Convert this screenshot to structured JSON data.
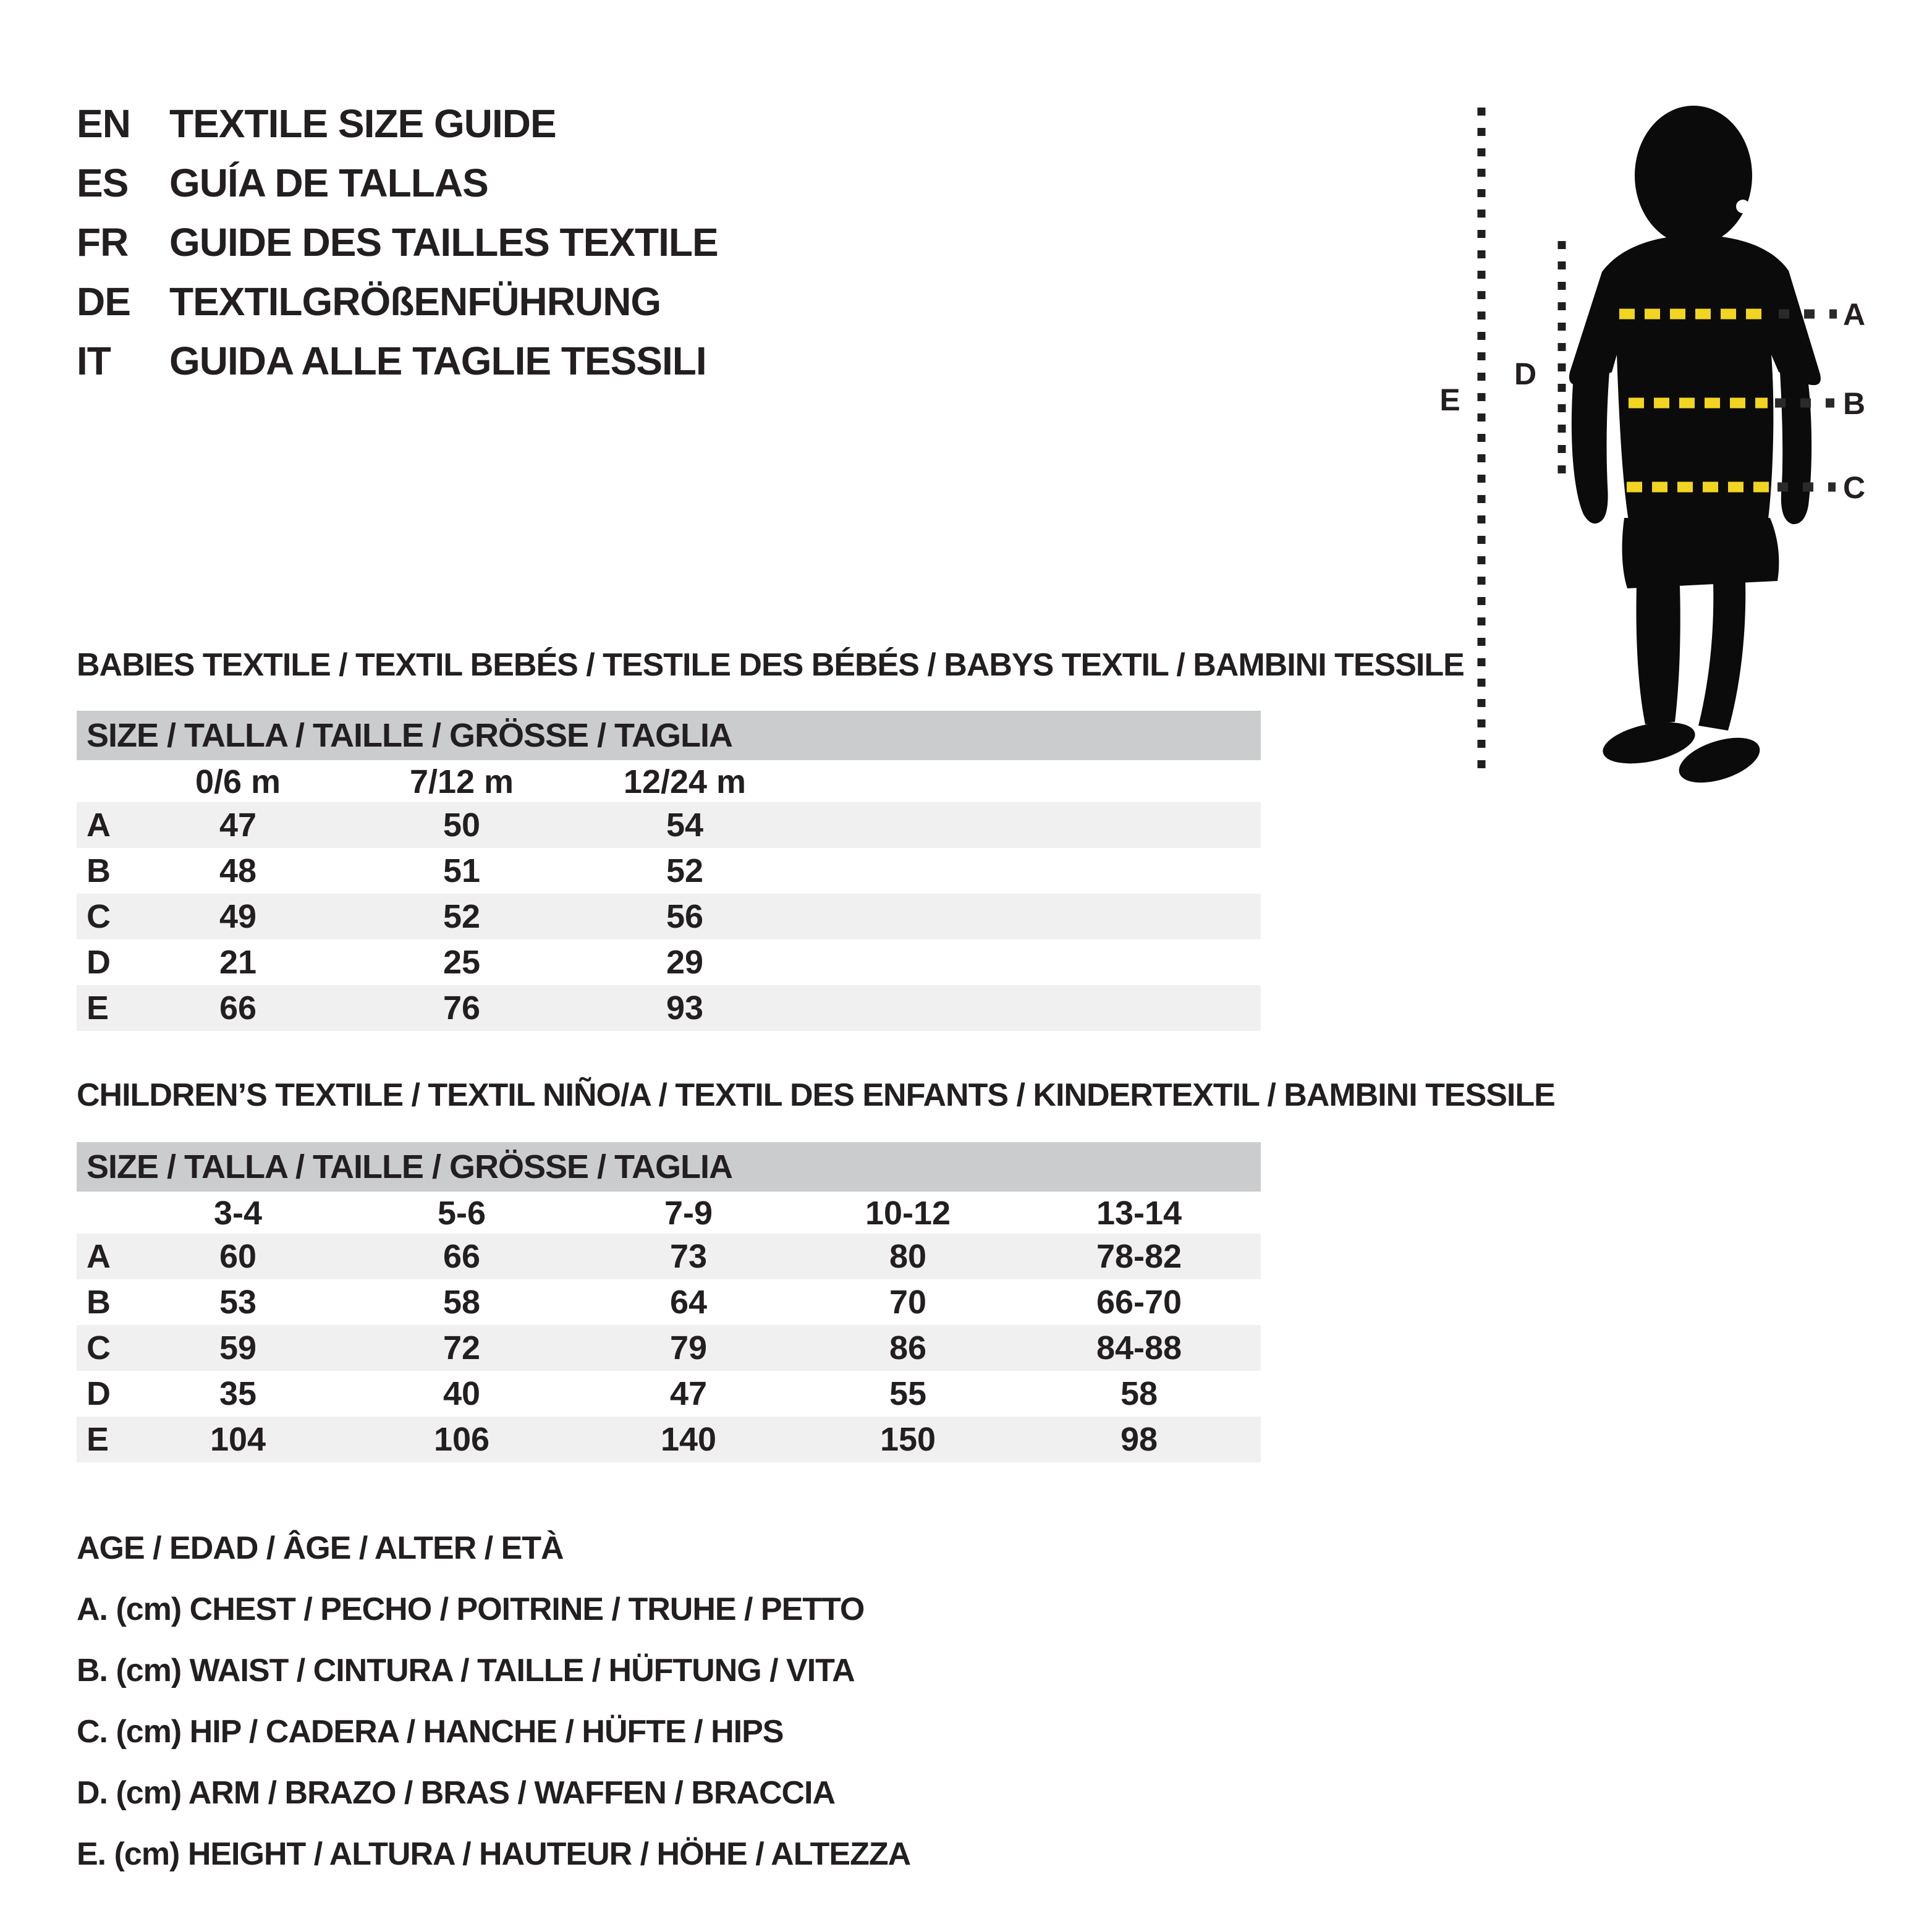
{
  "page": {
    "background": "#ffffff",
    "text_color": "#231f20",
    "accent_yellow": "#f2d520",
    "size_bar_grey": "#cbccce",
    "row_stripe": "#f0f0f1",
    "silhouette_black": "#0b0b0b"
  },
  "languages": [
    {
      "code": "EN",
      "title": "TEXTILE SIZE GUIDE"
    },
    {
      "code": "ES",
      "title": "GUÍA DE TALLAS"
    },
    {
      "code": "FR",
      "title": "GUIDE DES TAILLES TEXTILE"
    },
    {
      "code": "DE",
      "title": "TEXTILGRÖßENFÜHRUNG"
    },
    {
      "code": "IT",
      "title": "GUIDA ALLE TAGLIE TESSILI"
    }
  ],
  "figure": {
    "labels": [
      "A",
      "B",
      "C",
      "D",
      "E"
    ]
  },
  "babies": {
    "section_title": "BABIES TEXTILE / TEXTIL BEBÉS / TESTILE DES BÉBÉS / BABYS TEXTIL / BAMBINI TESSILE",
    "size_header": "SIZE / TALLA / TAILLE / GRÖSSE / TAGLIA",
    "columns": [
      "0/6 m",
      "7/12 m",
      "12/24 m"
    ],
    "rows": [
      {
        "label": "A",
        "values": [
          "47",
          "50",
          "54"
        ]
      },
      {
        "label": "B",
        "values": [
          "48",
          "51",
          "52"
        ]
      },
      {
        "label": "C",
        "values": [
          "49",
          "52",
          "56"
        ]
      },
      {
        "label": "D",
        "values": [
          "21",
          "25",
          "29"
        ]
      },
      {
        "label": "E",
        "values": [
          "66",
          "76",
          "93"
        ]
      }
    ]
  },
  "children": {
    "section_title": "CHILDREN’S TEXTILE / TEXTIL NIÑO/A / TEXTIL DES ENFANTS / KINDERTEXTIL / BAMBINI TESSILE",
    "size_header": "SIZE / TALLA / TAILLE / GRÖSSE / TAGLIA",
    "columns": [
      "3-4",
      "5-6",
      "7-9",
      "10-12",
      "13-14"
    ],
    "rows": [
      {
        "label": "A",
        "values": [
          "60",
          "66",
          "73",
          "80",
          "78-82"
        ]
      },
      {
        "label": "B",
        "values": [
          "53",
          "58",
          "64",
          "70",
          "66-70"
        ]
      },
      {
        "label": "C",
        "values": [
          "59",
          "72",
          "79",
          "86",
          "84-88"
        ]
      },
      {
        "label": "D",
        "values": [
          "35",
          "40",
          "47",
          "55",
          "58"
        ]
      },
      {
        "label": "E",
        "values": [
          "104",
          "106",
          "140",
          "150",
          "98"
        ]
      }
    ]
  },
  "legend": [
    "AGE / EDAD / ÂGE / ALTER / ETÀ",
    "A. (cm) CHEST / PECHO / POITRINE / TRUHE / PETTO",
    "B. (cm) WAIST / CINTURA / TAILLE / HÜFTUNG / VITA",
    "C. (cm) HIP / CADERA / HANCHE / HÜFTE / HIPS",
    "D. (cm) ARM / BRAZO / BRAS / WAFFEN / BRACCIA",
    "E. (cm) HEIGHT / ALTURA / HAUTEUR / HÖHE / ALTEZZA"
  ]
}
